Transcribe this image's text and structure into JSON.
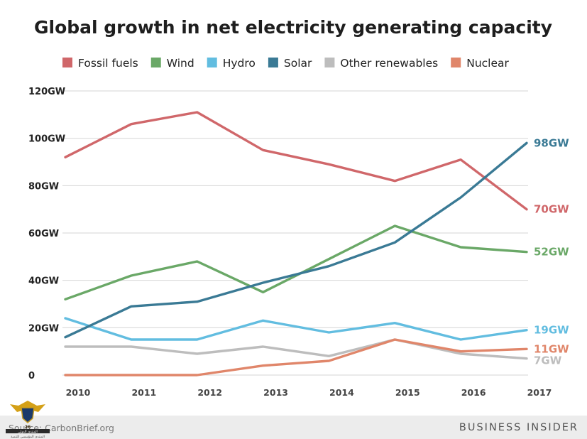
{
  "chart_data": {
    "type": "line",
    "title": "Global growth in net electricity generating capacity",
    "xlabel": "",
    "ylabel": "",
    "ylim": [
      0,
      120
    ],
    "y_ticks": [
      "0",
      "20GW",
      "40GW",
      "60GW",
      "80GW",
      "100GW",
      "120GW"
    ],
    "x": [
      "2010",
      "2011",
      "2012",
      "2013",
      "2014",
      "2015",
      "2016",
      "2017"
    ],
    "grid": true,
    "legend_position": "top",
    "series": [
      {
        "name": "Fossil fuels",
        "color": "#d0676a",
        "values": [
          92,
          106,
          111,
          95,
          89,
          82,
          91,
          70
        ],
        "end_label": "70GW"
      },
      {
        "name": "Wind",
        "color": "#6aa867",
        "values": [
          32,
          42,
          48,
          35,
          49,
          63,
          54,
          52
        ],
        "end_label": "52GW"
      },
      {
        "name": "Hydro",
        "color": "#62bde0",
        "values": [
          24,
          15,
          15,
          23,
          18,
          22,
          15,
          19
        ],
        "end_label": "19GW"
      },
      {
        "name": "Solar",
        "color": "#3a7a95",
        "values": [
          16,
          29,
          31,
          39,
          46,
          56,
          75,
          98
        ],
        "end_label": "98GW"
      },
      {
        "name": "Other renewables",
        "color": "#bdbdbd",
        "values": [
          12,
          12,
          9,
          12,
          8,
          15,
          9,
          7
        ],
        "end_label": "7GW"
      },
      {
        "name": "Nuclear",
        "color": "#e0866a",
        "values": [
          0,
          0,
          0,
          4,
          6,
          15,
          10,
          11
        ],
        "end_label": "11GW"
      }
    ]
  },
  "footer": {
    "source": "Source: CarbonBrief.org",
    "brand": "BUSINESS INSIDER"
  },
  "watermark": {
    "year_text": "26",
    "line1": "المنتدى الدولي",
    "line2": "المنتدى المؤسسي للتنمية"
  }
}
